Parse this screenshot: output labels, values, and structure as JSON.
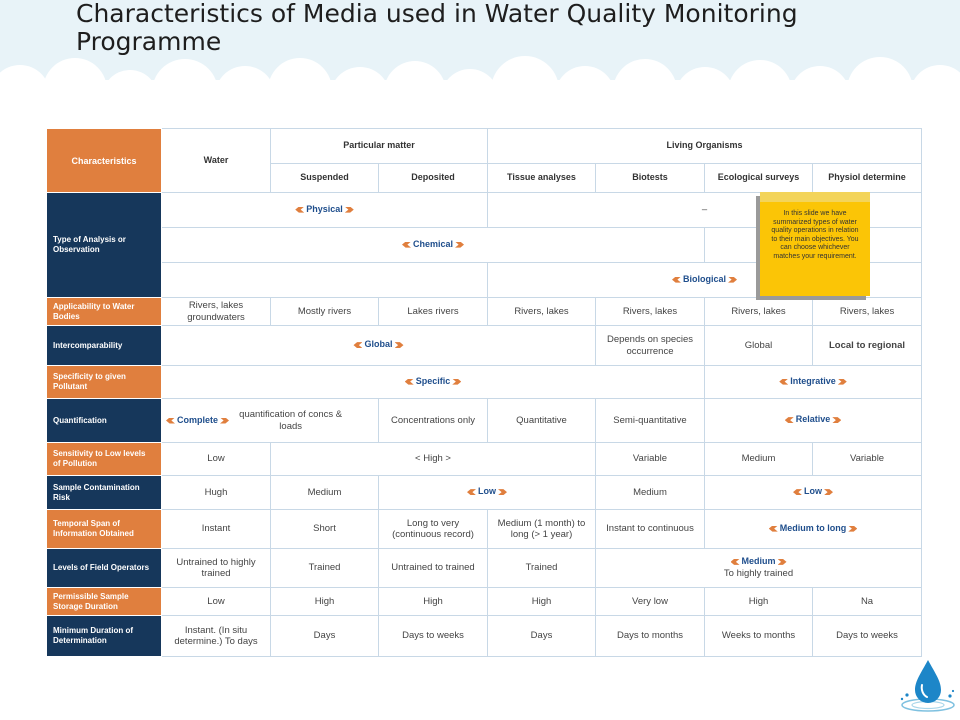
{
  "title": "Characteristics of Media used in Water Quality Monitoring Programme",
  "header": {
    "characteristics": "Characteristics",
    "water": "Water",
    "particular_matter": "Particular matter",
    "living_organisms": "Living Organisms",
    "suspended": "Suspended",
    "deposited": "Deposited",
    "tissue_analyses": "Tissue analyses",
    "biotests": "Biotests",
    "ecological_surveys": "Ecological surveys",
    "physiol_determine": "Physiol determine"
  },
  "rows": {
    "type_analysis": {
      "label": "Type of Analysis or Observation",
      "physical": "Physical",
      "dash": "–",
      "chemical": "Chemical",
      "biological": "Biological"
    },
    "applicability": {
      "label": "Applicability to Water Bodies",
      "water": "Rivers, lakes groundwaters",
      "suspended": "Mostly rivers",
      "deposited": "Lakes rivers",
      "tissue": "Rivers, lakes",
      "biotests": "Rivers, lakes",
      "ecological": "Rivers, lakes",
      "physiol": "Rivers, lakes"
    },
    "intercomparability": {
      "label": "Intercomparability",
      "global": "Global",
      "biotests": "Depends on species occurrence",
      "ecological": "Global",
      "physiol": "Local to regional"
    },
    "specificity": {
      "label": "Specificity to given Pollutant",
      "specific": "Specific",
      "integrative": "Integrative"
    },
    "quantification": {
      "label": "Quantification",
      "complete": "Complete",
      "suspended": "quantification of concs & loads",
      "deposited": "Concentrations only",
      "tissue": "Quantitative",
      "biotests": "Semi-quantitative",
      "relative": "Relative"
    },
    "sensitivity": {
      "label": "Sensitivity to Low levels of Pollution",
      "water": "Low",
      "high": "< High >",
      "biotests": "Variable",
      "ecological": "Medium",
      "physiol": "Variable"
    },
    "contamination": {
      "label": "Sample Contamination Risk",
      "water": "Hugh",
      "suspended": "Medium",
      "low1": "Low",
      "biotests": "Medium",
      "low2": "Low"
    },
    "temporal": {
      "label": "Temporal Span of Information Obtained",
      "water": "Instant",
      "suspended": "Short",
      "deposited": "Long to very (continuous record)",
      "tissue": "Medium (1 month) to long (> 1 year)",
      "biotests": "Instant to continuous",
      "medium_long": "Medium to long"
    },
    "operators": {
      "label": "Levels of Field Operators",
      "water": "Untrained to highly trained",
      "suspended": "Trained",
      "deposited": "Untrained to trained",
      "tissue": "Trained",
      "medium": "Medium",
      "highly_trained": "To highly trained"
    },
    "storage": {
      "label": "Permissible Sample Storage Duration",
      "water": "Low",
      "suspended": "High",
      "deposited": "High",
      "tissue": "High",
      "biotests": "Very low",
      "ecological": "High",
      "physiol": "Na"
    },
    "duration": {
      "label": "Minimum Duration of Determination",
      "water": "Instant. (In situ determine.) To days",
      "suspended": "Days",
      "deposited": "Days to weeks",
      "tissue": "Days",
      "biotests": "Days to months",
      "ecological": "Weeks to months",
      "physiol": "Days to weeks"
    }
  },
  "note": "In this slide we have summarized types of water quality operations in relation to their main objectives. You can choose whichever matches your requirement.",
  "colors": {
    "orange": "#e07f3e",
    "navy": "#16375b",
    "accent_blue": "#1f4e8c",
    "note_yellow": "#fbc506"
  },
  "icons": [
    "cloud-background",
    "water-drop-icon",
    "arrowhead-icon"
  ]
}
